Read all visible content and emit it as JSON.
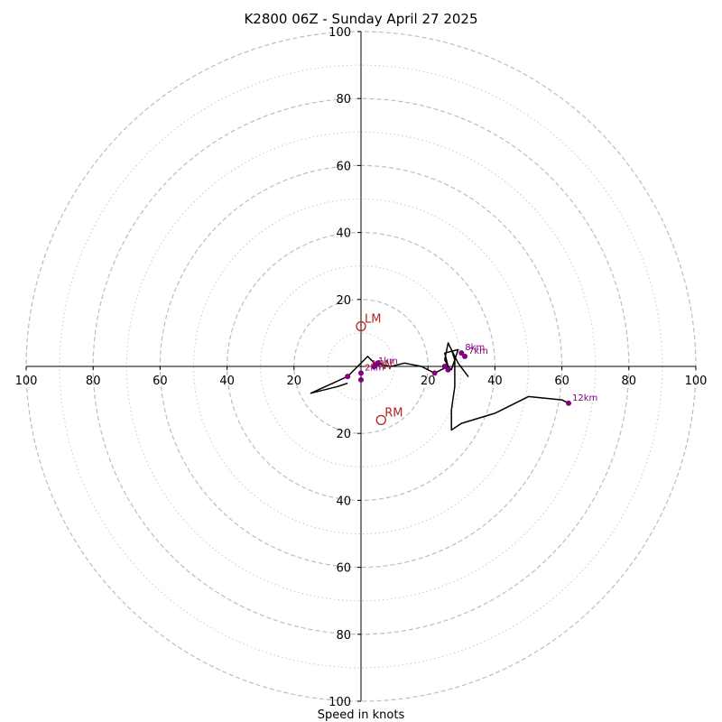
{
  "chart_data": {
    "type": "line",
    "title": "K2800 06Z - Sunday April 27 2025",
    "xlabel": "Speed in knots",
    "ylabel": "",
    "xlim": [
      -100,
      100
    ],
    "ylim": [
      -100,
      100
    ],
    "ring_major": [
      20,
      40,
      60,
      80,
      100
    ],
    "ring_minor": [
      10,
      30,
      50,
      70,
      90
    ],
    "tick_labels": [
      "20",
      "40",
      "60",
      "80",
      "100"
    ],
    "grid": true,
    "hodograph": {
      "color": "#000000",
      "points": [
        [
          -4,
          -5
        ],
        [
          -7,
          -6
        ],
        [
          -15,
          -8
        ],
        [
          -4,
          -3
        ],
        [
          -1,
          0
        ],
        [
          2,
          3
        ],
        [
          4,
          1
        ],
        [
          9,
          0
        ],
        [
          13,
          1
        ],
        [
          18,
          0
        ],
        [
          22,
          -2
        ],
        [
          24,
          -1
        ],
        [
          26,
          0
        ],
        [
          25,
          4
        ],
        [
          29,
          5
        ],
        [
          27,
          -1
        ],
        [
          26,
          0
        ],
        [
          25,
          2
        ],
        [
          26,
          7
        ],
        [
          29,
          1
        ],
        [
          32,
          -3
        ],
        [
          29,
          1
        ],
        [
          27,
          5
        ],
        [
          28,
          2
        ],
        [
          28,
          -6
        ],
        [
          27,
          -13
        ],
        [
          27,
          -19
        ],
        [
          30,
          -17
        ],
        [
          40,
          -14
        ],
        [
          50,
          -9
        ],
        [
          60,
          -10
        ],
        [
          62,
          -11
        ]
      ]
    },
    "height_markers": {
      "color": "#800080",
      "points": [
        {
          "label": "",
          "x": -4,
          "y": -3
        },
        {
          "label": "",
          "x": 0,
          "y": -4
        },
        {
          "label": "2km",
          "x": 0,
          "y": -2
        },
        {
          "label": "1km",
          "x": 4,
          "y": 0
        },
        {
          "label": "",
          "x": 5,
          "y": 1
        },
        {
          "label": "",
          "x": 22,
          "y": -2
        },
        {
          "label": "",
          "x": 25,
          "y": 0
        },
        {
          "label": "",
          "x": 26,
          "y": -1
        },
        {
          "label": "8km",
          "x": 30,
          "y": 4
        },
        {
          "label": "7km",
          "x": 31,
          "y": 3
        },
        {
          "label": "12km",
          "x": 62,
          "y": -11
        }
      ]
    },
    "storm_motion": {
      "color": "#b22222",
      "points": [
        {
          "label": "LM",
          "x": 0,
          "y": 12
        },
        {
          "label": "RM",
          "x": 6,
          "y": -16
        }
      ]
    },
    "mean_wind": {
      "label": "MW",
      "x": 2,
      "y": 0,
      "color": "#b8860b"
    }
  }
}
